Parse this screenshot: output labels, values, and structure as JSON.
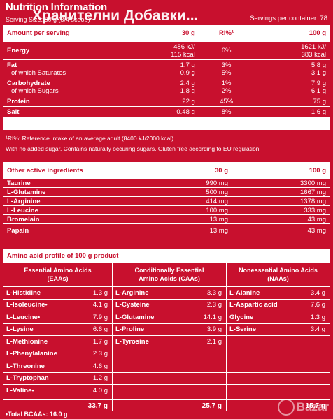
{
  "header": {
    "title": "Nutrition Information",
    "overlay_title": "Хранителни Добавки...",
    "serving_size": "Serving Size: 30 g (3/4 scoop)",
    "servings_per_container": "Servings per container: 78"
  },
  "nutrition": {
    "headers": [
      "Amount per serving",
      "30 g",
      "RI%¹",
      "100 g"
    ],
    "rows": [
      {
        "label": "Energy",
        "sub": "",
        "v30": "486 kJ/",
        "v30b": "115 kcal",
        "ri": "6%",
        "ri2": "",
        "v100": "1621 kJ/",
        "v100b": "383 kcal"
      },
      {
        "label": "Fat",
        "sub": "of which Saturates",
        "v30": "1.7 g",
        "v30b": "0.9 g",
        "ri": "3%",
        "ri2": "5%",
        "v100": "5.8 g",
        "v100b": "3.1 g"
      },
      {
        "label": "Carbohydrate",
        "sub": "of which Sugars",
        "v30": "2.4 g",
        "v30b": "1.8 g",
        "ri": "1%",
        "ri2": "2%",
        "v100": "7.9 g",
        "v100b": "6.1 g"
      },
      {
        "label": "Protein",
        "v30": "22 g",
        "ri": "45%",
        "v100": "75 g"
      },
      {
        "label": "Salt",
        "v30": "0.48 g",
        "ri": "8%",
        "v100": "1.6 g"
      }
    ]
  },
  "notes": {
    "ri_note": "¹RI%: Reference Intake of an average adult (8400 kJ/2000 kcal).",
    "sugar_note": "With no added sugar. Contains naturally occuring sugars. Gluten free according to EU regulation."
  },
  "other": {
    "headers": [
      "Other active ingredients",
      "30 g",
      "100 g"
    ],
    "rows": [
      {
        "name": "Taurine",
        "v30": "990 mg",
        "v100": "3300 mg"
      },
      {
        "name": "L-Glutamine",
        "v30": "500 mg",
        "v100": "1667 mg"
      },
      {
        "name": "L-Arginine",
        "v30": "414 mg",
        "v100": "1378 mg"
      },
      {
        "name": "L-Leucine",
        "v30": "100 mg",
        "v100": "333 mg"
      },
      {
        "name": "Bromelain",
        "v30": "13 mg",
        "v100": "43 mg"
      },
      {
        "name": "Papain",
        "v30": "13 mg",
        "v100": "43 mg"
      }
    ]
  },
  "amino": {
    "title": "Amino acid profile of 100 g product",
    "essential": {
      "head1": "Essential Amino Acids",
      "head2": "(EAAs)",
      "rows": [
        {
          "name": "L-Histidine",
          "val": "1.3 g"
        },
        {
          "name": "L-Isoleucine•",
          "val": "4.1 g"
        },
        {
          "name": "L-Leucine•",
          "val": "7.9 g"
        },
        {
          "name": "L-Lysine",
          "val": "6.6 g"
        },
        {
          "name": "L-Methionine",
          "val": "1.7 g"
        },
        {
          "name": "L-Phenylalanine",
          "val": "2.3 g"
        },
        {
          "name": "L-Threonine",
          "val": "4.6 g"
        },
        {
          "name": "L-Tryptophan",
          "val": "1.2 g"
        },
        {
          "name": "L-Valine•",
          "val": "4.0 g"
        }
      ],
      "total": "33.7 g"
    },
    "conditional": {
      "head1": "Conditionally Essential",
      "head2": "Amino Acids (CAAs)",
      "rows": [
        {
          "name": "L-Arginine",
          "val": "3.3 g"
        },
        {
          "name": "L-Cysteine",
          "val": "2.3 g"
        },
        {
          "name": "L-Glutamine",
          "val": "14.1 g"
        },
        {
          "name": "L-Proline",
          "val": "3.9 g"
        },
        {
          "name": "L-Tyrosine",
          "val": "2.1 g"
        }
      ],
      "total": "25.7 g"
    },
    "nonessential": {
      "head1": "Nonessential Amino Acids",
      "head2": "(NAAs)",
      "rows": [
        {
          "name": "L-Alanine",
          "val": "3.4 g"
        },
        {
          "name": "L-Aspartic acid",
          "val": "7.6 g"
        },
        {
          "name": "Glycine",
          "val": "1.3 g"
        },
        {
          "name": "L-Serine",
          "val": "3.4 g"
        }
      ],
      "total": "15.7 g"
    },
    "bcaa_total": "•Total BCAAs: 16.0 g"
  },
  "watermark": "Bazar"
}
